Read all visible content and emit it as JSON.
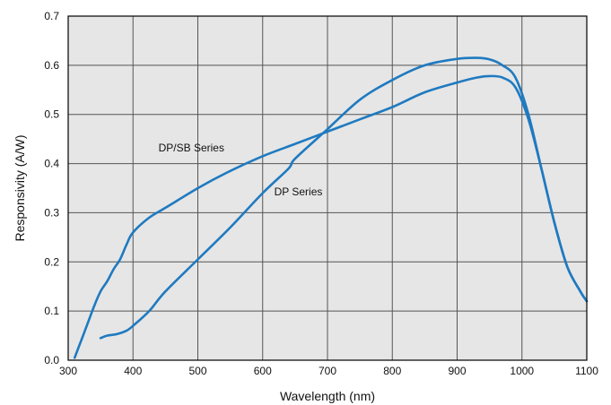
{
  "chart_data": {
    "type": "line",
    "xlabel": "Wavelength (nm)",
    "ylabel": "Responsivity (A/W)",
    "xlim": [
      300,
      1100
    ],
    "ylim": [
      0,
      0.7
    ],
    "xticks": [
      300,
      400,
      500,
      600,
      700,
      800,
      900,
      1000,
      1100
    ],
    "yticks": [
      0.0,
      0.1,
      0.2,
      0.3,
      0.4,
      0.5,
      0.6,
      0.7
    ],
    "xtick_labels": [
      "300",
      "400",
      "500",
      "600",
      "700",
      "800",
      "900",
      "1000",
      "1100"
    ],
    "ytick_labels": [
      "0.0",
      "0.1",
      "0.2",
      "0.3",
      "0.4",
      "0.5",
      "0.6",
      "0.7"
    ],
    "grid": true,
    "colors": {
      "plot_bg": "#e6e6e6",
      "line": "#1f7ac0",
      "grid": "#555555"
    },
    "series": [
      {
        "name": "DP/SB Series",
        "x": [
          310,
          320,
          330,
          340,
          350,
          360,
          370,
          380,
          390,
          400,
          425,
          450,
          500,
          550,
          600,
          650,
          700,
          750,
          800,
          850,
          900,
          930,
          950,
          970,
          990,
          1010,
          1030,
          1050,
          1070,
          1090,
          1100
        ],
        "values": [
          0.005,
          0.04,
          0.075,
          0.11,
          0.14,
          0.16,
          0.185,
          0.205,
          0.235,
          0.26,
          0.29,
          0.31,
          0.35,
          0.385,
          0.415,
          0.44,
          0.465,
          0.49,
          0.515,
          0.545,
          0.565,
          0.575,
          0.578,
          0.575,
          0.555,
          0.49,
          0.39,
          0.28,
          0.19,
          0.14,
          0.12
        ]
      },
      {
        "name": "DP Series",
        "x": [
          350,
          360,
          375,
          390,
          400,
          425,
          450,
          500,
          550,
          600,
          640,
          650,
          700,
          750,
          800,
          850,
          900,
          930,
          950,
          970,
          990,
          1010,
          1030,
          1050,
          1070,
          1090,
          1100
        ],
        "values": [
          0.045,
          0.05,
          0.053,
          0.06,
          0.07,
          0.1,
          0.14,
          0.205,
          0.27,
          0.34,
          0.39,
          0.41,
          0.47,
          0.53,
          0.57,
          0.6,
          0.613,
          0.615,
          0.612,
          0.6,
          0.575,
          0.5,
          0.39,
          0.28,
          0.19,
          0.14,
          0.12
        ]
      }
    ],
    "annotations": [
      {
        "text": "DP/SB Series",
        "x": 490,
        "y": 0.425
      },
      {
        "text": "DP Series",
        "x": 655,
        "y": 0.335
      }
    ]
  }
}
